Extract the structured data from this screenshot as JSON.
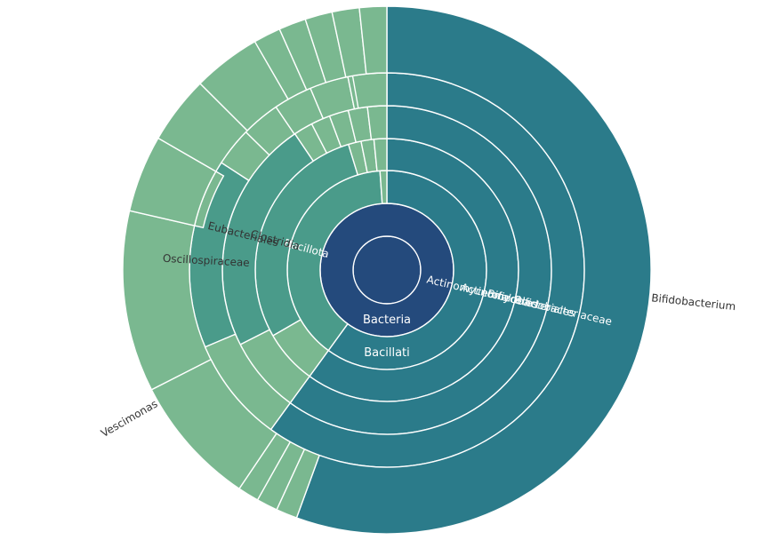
{
  "chart_data": {
    "type": "sunburst",
    "colors": {
      "domain": "#244a7c",
      "actino": "#2b7b8a",
      "bacillota": "#4a9b8a",
      "light": "#7ab890",
      "divider": "#ffffff",
      "label_light": "#ffffff",
      "label_dark": "#333333"
    },
    "levels": [
      "domain",
      "kingdom",
      "phylum",
      "class",
      "order",
      "family",
      "genus"
    ],
    "rank_labels": [
      {
        "text": "Bacteria",
        "ring": 1
      },
      {
        "text": "Bacillati",
        "ring": 2
      }
    ],
    "segments": [
      {
        "name": "Bacteria",
        "level": 0,
        "start": 0,
        "end": 360,
        "color": "domain"
      },
      {
        "name": "Bacillati",
        "level": 1,
        "start": 0,
        "end": 360,
        "color": "domain"
      },
      {
        "name": "Actinomycetota",
        "level": 2,
        "start": 0,
        "end": 216,
        "color": "actino",
        "label_level": 2
      },
      {
        "name": "Actinomycetes",
        "level": 3,
        "start": 0,
        "end": 216,
        "color": "actino",
        "label_level": 3
      },
      {
        "name": "Bifidobacteriales",
        "level": 4,
        "start": 0,
        "end": 216,
        "color": "actino",
        "label_level": 4
      },
      {
        "name": "Bifidobacteriaceae",
        "level": 5,
        "start": 0,
        "end": 216,
        "color": "actino",
        "label_level": 5
      },
      {
        "name": "Bifidobacterium",
        "level": 6,
        "start": 0,
        "end": 200,
        "color": "actino",
        "outside_label": true
      },
      {
        "name": "Bacillota",
        "level": 2,
        "start": 216,
        "end": 356,
        "color": "bacillota",
        "label_level": 2
      },
      {
        "name": "Clostridia",
        "level": 3,
        "start": 240,
        "end": 343,
        "color": "bacillota",
        "label_level": 3
      },
      {
        "name": "Eubacteriales",
        "level": 4,
        "start": 243,
        "end": 326,
        "color": "bacillota",
        "label_level": 4
      },
      {
        "name": "Oscillospiraceae",
        "level": 5,
        "start": 247,
        "end": 303,
        "color": "bacillota",
        "label_level": 5
      },
      {
        "name": "Vescimonas",
        "level": 6,
        "start": 243,
        "end": 283,
        "color": "light",
        "outside_label": true
      }
    ]
  }
}
